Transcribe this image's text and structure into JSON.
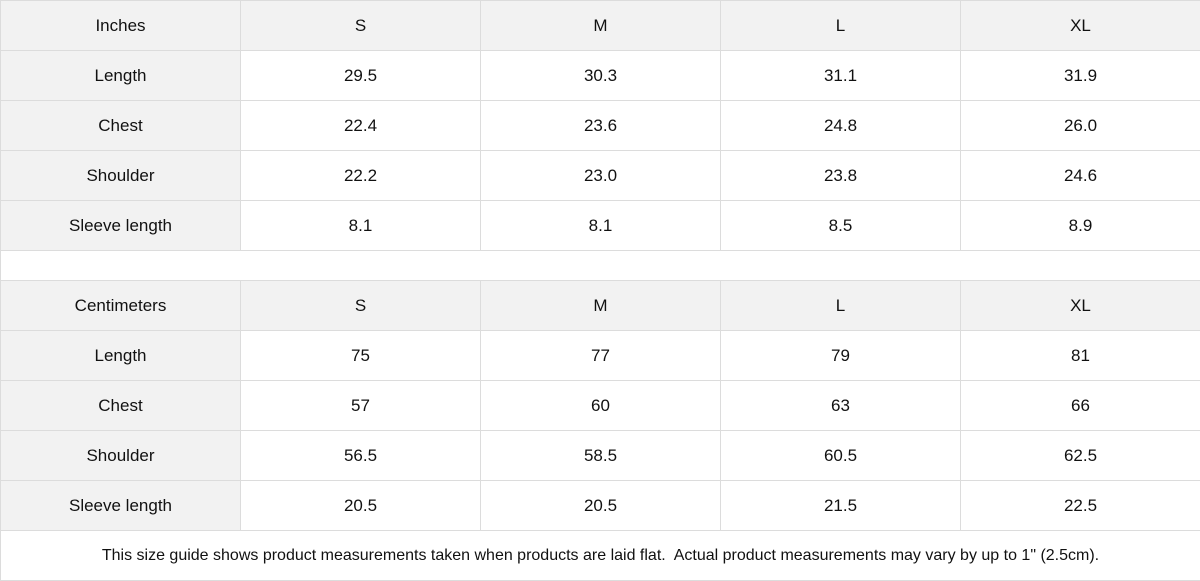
{
  "inches": {
    "header": [
      "Inches",
      "S",
      "M",
      "L",
      "XL"
    ],
    "rows": [
      [
        "Length",
        "29.5",
        "30.3",
        "31.1",
        "31.9"
      ],
      [
        "Chest",
        "22.4",
        "23.6",
        "24.8",
        "26.0"
      ],
      [
        "Shoulder",
        "22.2",
        "23.0",
        "23.8",
        "24.6"
      ],
      [
        "Sleeve length",
        "8.1",
        "8.1",
        "8.5",
        "8.9"
      ]
    ]
  },
  "centimeters": {
    "header": [
      "Centimeters",
      "S",
      "M",
      "L",
      "XL"
    ],
    "rows": [
      [
        "Length",
        "75",
        "77",
        "79",
        "81"
      ],
      [
        "Chest",
        "57",
        "60",
        "63",
        "66"
      ],
      [
        "Shoulder",
        "56.5",
        "58.5",
        "60.5",
        "62.5"
      ],
      [
        "Sleeve length",
        "20.5",
        "20.5",
        "21.5",
        "22.5"
      ]
    ]
  },
  "note": "This size guide shows product measurements taken when products are laid flat.  Actual product measurements may vary by up to 1\" (2.5cm).",
  "colors": {
    "header_bg": "#f2f2f2",
    "border": "#dcdcdc"
  }
}
